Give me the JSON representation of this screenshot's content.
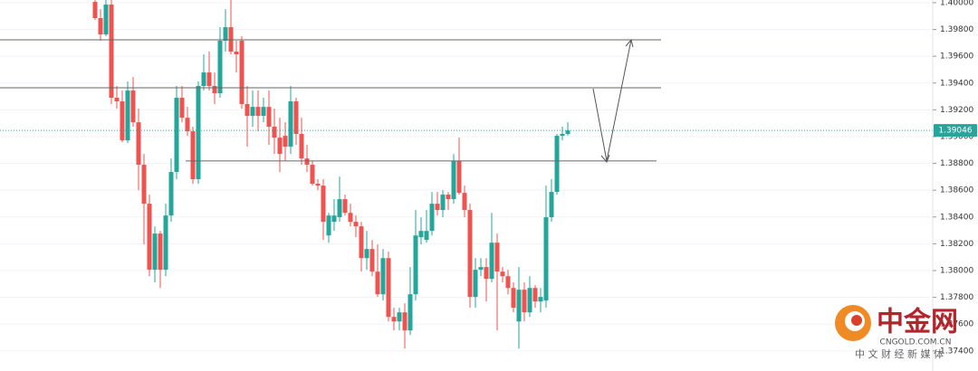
{
  "chart_data": {
    "type": "candlestick",
    "ylim": [
      1.3725,
      1.4002
    ],
    "yticks": [
      {
        "value": 1.4,
        "label": "1.40000"
      },
      {
        "value": 1.398,
        "label": "1.39800"
      },
      {
        "value": 1.396,
        "label": "1.39600"
      },
      {
        "value": 1.394,
        "label": "1.39400"
      },
      {
        "value": 1.392,
        "label": "1.39200"
      },
      {
        "value": 1.39,
        "label": "1.39000"
      },
      {
        "value": 1.388,
        "label": "1.38800"
      },
      {
        "value": 1.386,
        "label": "1.38600"
      },
      {
        "value": 1.384,
        "label": "1.38400"
      },
      {
        "value": 1.382,
        "label": "1.38200"
      },
      {
        "value": 1.38,
        "label": "1.38000"
      },
      {
        "value": 1.378,
        "label": "1.37800"
      },
      {
        "value": 1.376,
        "label": "1.37600"
      },
      {
        "value": 1.374,
        "label": "1.37400"
      }
    ],
    "grid": true,
    "up_color": "#26a69a",
    "down_color": "#ef5350",
    "last_price": 1.39046,
    "levels": [
      1.39723,
      1.39365,
      1.38818
    ],
    "candles": [
      [
        1.40006,
        1.40054,
        1.39871,
        1.39885
      ],
      [
        1.39885,
        1.39952,
        1.39716,
        1.39763
      ],
      [
        1.39763,
        1.4002,
        1.3975,
        1.39986
      ],
      [
        1.39986,
        1.4002,
        1.39243,
        1.3929
      ],
      [
        1.3929,
        1.39378,
        1.39209,
        1.39263
      ],
      [
        1.39263,
        1.39344,
        1.38959,
        1.38972
      ],
      [
        1.38972,
        1.39412,
        1.38952,
        1.39344
      ],
      [
        1.39344,
        1.39445,
        1.39074,
        1.39107
      ],
      [
        1.39107,
        1.39209,
        1.386,
        1.3879
      ],
      [
        1.3879,
        1.38871,
        1.38195,
        1.38499
      ],
      [
        1.38499,
        1.38567,
        1.37958,
        1.38006
      ],
      [
        1.38006,
        1.3833,
        1.37911,
        1.38276
      ],
      [
        1.38276,
        1.38296,
        1.3787,
        1.38006
      ],
      [
        1.38006,
        1.38499,
        1.37958,
        1.38411
      ],
      [
        1.38411,
        1.38837,
        1.38364,
        1.38736
      ],
      [
        1.38736,
        1.39378,
        1.38682,
        1.3929
      ],
      [
        1.3929,
        1.39378,
        1.39107,
        1.39141
      ],
      [
        1.39141,
        1.39222,
        1.39006,
        1.3904
      ],
      [
        1.3904,
        1.39074,
        1.38648,
        1.38682
      ],
      [
        1.38682,
        1.39412,
        1.38648,
        1.39378
      ],
      [
        1.39378,
        1.39614,
        1.39344,
        1.39479
      ],
      [
        1.39479,
        1.39635,
        1.39344,
        1.39378
      ],
      [
        1.39378,
        1.39479,
        1.39243,
        1.39324
      ],
      [
        1.39324,
        1.39817,
        1.3929,
        1.39716
      ],
      [
        1.39716,
        1.39952,
        1.39635,
        1.39817
      ],
      [
        1.39817,
        1.4002,
        1.39614,
        1.39635
      ],
      [
        1.39635,
        1.39716,
        1.39479,
        1.39614
      ],
      [
        1.39716,
        1.3975,
        1.39209,
        1.39243
      ],
      [
        1.39243,
        1.39378,
        1.38925,
        1.39155
      ],
      [
        1.39155,
        1.39344,
        1.39074,
        1.39222
      ],
      [
        1.39222,
        1.39344,
        1.3904,
        1.39155
      ],
      [
        1.39155,
        1.3929,
        1.39107,
        1.39222
      ],
      [
        1.39222,
        1.39344,
        1.38938,
        1.39074
      ],
      [
        1.39074,
        1.39209,
        1.38871,
        1.38992
      ],
      [
        1.38992,
        1.39141,
        1.38736,
        1.38871
      ],
      [
        1.39006,
        1.39107,
        1.38817,
        1.38925
      ],
      [
        1.38925,
        1.39378,
        1.38871,
        1.39263
      ],
      [
        1.39263,
        1.3929,
        1.38938,
        1.3902
      ],
      [
        1.3902,
        1.39141,
        1.3879,
        1.38837
      ],
      [
        1.38837,
        1.38938,
        1.38736,
        1.3879
      ],
      [
        1.3879,
        1.38817,
        1.38634,
        1.38648
      ],
      [
        1.38648,
        1.38682,
        1.386,
        1.38634
      ],
      [
        1.38634,
        1.38682,
        1.38229,
        1.38364
      ],
      [
        1.38262,
        1.38431,
        1.38208,
        1.38411
      ],
      [
        1.38364,
        1.38533,
        1.38296,
        1.38411
      ],
      [
        1.38398,
        1.38702,
        1.38364,
        1.38533
      ],
      [
        1.38533,
        1.38567,
        1.38411,
        1.38431
      ],
      [
        1.38431,
        1.38499,
        1.3833,
        1.38364
      ],
      [
        1.38364,
        1.38411,
        1.38249,
        1.3833
      ],
      [
        1.3833,
        1.38364,
        1.37992,
        1.38093
      ],
      [
        1.38093,
        1.38296,
        1.38006,
        1.38161
      ],
      [
        1.38161,
        1.38229,
        1.37958,
        1.37992
      ],
      [
        1.37992,
        1.38195,
        1.37803,
        1.37823
      ],
      [
        1.37823,
        1.38161,
        1.37776,
        1.38093
      ],
      [
        1.38093,
        1.38141,
        1.3762,
        1.37654
      ],
      [
        1.37654,
        1.37722,
        1.37553,
        1.3762
      ],
      [
        1.3762,
        1.37722,
        1.37553,
        1.37688
      ],
      [
        1.37688,
        1.37755,
        1.37417,
        1.37553
      ],
      [
        1.37553,
        1.38026,
        1.37519,
        1.37823
      ],
      [
        1.37823,
        1.38452,
        1.37776,
        1.38262
      ],
      [
        1.38249,
        1.38398,
        1.38195,
        1.38296
      ],
      [
        1.38229,
        1.38452,
        1.38208,
        1.38296
      ],
      [
        1.38296,
        1.38587,
        1.38262,
        1.38499
      ],
      [
        1.38499,
        1.38587,
        1.38411,
        1.38452
      ],
      [
        1.38452,
        1.386,
        1.38398,
        1.38567
      ],
      [
        1.38567,
        1.38587,
        1.38452,
        1.38533
      ],
      [
        1.38533,
        1.38871,
        1.38499,
        1.38817
      ],
      [
        1.38817,
        1.38992,
        1.38567,
        1.3858
      ],
      [
        1.3858,
        1.38634,
        1.38398,
        1.38452
      ],
      [
        1.38452,
        1.38499,
        1.37722,
        1.37803
      ],
      [
        1.37803,
        1.38093,
        1.37722,
        1.38006
      ],
      [
        1.38006,
        1.38093,
        1.37958,
        1.38026
      ],
      [
        1.38026,
        1.38093,
        1.37769,
        1.37938
      ],
      [
        1.37938,
        1.38431,
        1.37911,
        1.38208
      ],
      [
        1.38208,
        1.38276,
        1.37553,
        1.37992
      ],
      [
        1.37992,
        1.38026,
        1.37911,
        1.37958
      ],
      [
        1.37958,
        1.38006,
        1.37823,
        1.3787
      ],
      [
        1.3787,
        1.37911,
        1.37688,
        1.37722
      ],
      [
        1.3762,
        1.38026,
        1.37417,
        1.37857
      ],
      [
        1.37857,
        1.37911,
        1.3762,
        1.37688
      ],
      [
        1.37688,
        1.37958,
        1.37654,
        1.3787
      ],
      [
        1.3787,
        1.37891,
        1.37722,
        1.37769
      ],
      [
        1.37769,
        1.3787,
        1.37688,
        1.37803
      ],
      [
        1.37776,
        1.38634,
        1.37722,
        1.38398
      ],
      [
        1.38398,
        1.38682,
        1.38364,
        1.38587
      ],
      [
        1.38587,
        1.3902,
        1.38567,
        1.39006
      ],
      [
        1.39006,
        1.39074,
        1.38972,
        1.3902
      ],
      [
        1.3902,
        1.39107,
        1.39006,
        1.39046
      ]
    ]
  },
  "watermark": {
    "logo": "中金网",
    "site": "CNGOLD.COM.CN",
    "slogan": "中 文 财 经 新 媒 体"
  }
}
